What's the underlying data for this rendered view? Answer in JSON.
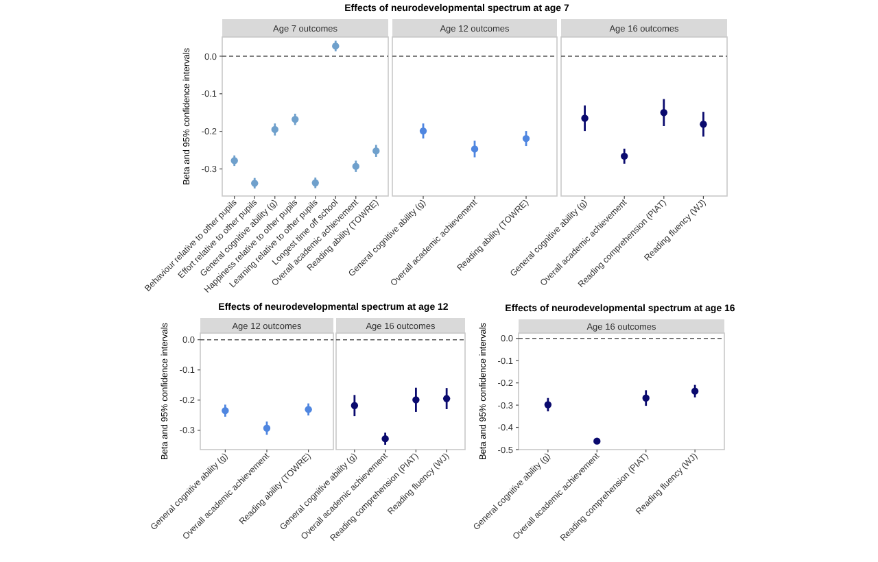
{
  "chart_data": [
    {
      "type": "scatter",
      "title": "Effects of neurodevelopmental spectrum at age 7",
      "subtitle": "Age 7 outcomes",
      "ylabel": "Beta and 95% confidence intervals",
      "categories": [
        "Behaviour relative to other pupils",
        "Effort relative to other pupils",
        "General cognitive ability (g)",
        "Happiness relative to other pupils",
        "Learning relative to other pupils",
        "Longest time off school",
        "Overall academic achievement",
        "Reading ability (TOWRE)"
      ],
      "values": [
        -0.278,
        -0.338,
        -0.195,
        -0.168,
        -0.337,
        0.027,
        -0.293,
        -0.252
      ],
      "errors": [
        0.014,
        0.014,
        0.016,
        0.015,
        0.014,
        0.014,
        0.015,
        0.016
      ],
      "color": "#6fa0cc",
      "marker": "circle",
      "ylim": [
        -0.372,
        0.051
      ],
      "yticks": [
        {
          "value": 0,
          "label": "0.0"
        },
        {
          "value": -0.1,
          "label": "-0.1"
        },
        {
          "value": -0.2,
          "label": "-0.2"
        },
        {
          "value": -0.3,
          "label": "-0.3"
        }
      ],
      "ref_lines": [
        {
          "axis": "y",
          "value": 0,
          "line_style": "dashed"
        }
      ],
      "grid": false
    },
    {
      "type": "scatter",
      "subtitle": "Age 12 outcomes",
      "categories": [
        "General cognitive ability (g)",
        "Overall academic achievement",
        "Reading ability (TOWRE)"
      ],
      "values": [
        -0.199,
        -0.247,
        -0.219
      ],
      "errors": [
        0.02,
        0.022,
        0.02
      ],
      "color": "#4f86e0",
      "marker": "circle",
      "ylim": [
        -0.372,
        0.051
      ],
      "tick_labels": "x",
      "ref_lines": [
        {
          "axis": "y",
          "value": 0,
          "line_style": "dashed"
        }
      ],
      "grid": false
    },
    {
      "type": "scatter",
      "subtitle": "Age 16 outcomes",
      "categories": [
        "General cognitive ability (g)",
        "Overall academic achievement",
        "Reading comprehension (PIAT)",
        "Reading fluency (WJ)"
      ],
      "values": [
        -0.165,
        -0.266,
        -0.15,
        -0.181
      ],
      "errors": [
        0.034,
        0.02,
        0.036,
        0.033
      ],
      "color": "#0a0a6e",
      "marker": "circle",
      "ylim": [
        -0.372,
        0.051
      ],
      "tick_labels": "x",
      "ref_lines": [
        {
          "axis": "y",
          "value": 0,
          "line_style": "dashed"
        }
      ],
      "grid": false
    },
    {
      "type": "scatter",
      "title": "Effects of neurodevelopmental spectrum at age 12",
      "subtitle": "Age 12 outcomes",
      "ylabel": "Beta and 95% confidence intervals",
      "categories": [
        "General cognitive ability (g)",
        "Overall academic achievement",
        "Reading ability (TOWRE)"
      ],
      "values": [
        -0.235,
        -0.293,
        -0.231
      ],
      "errors": [
        0.02,
        0.022,
        0.02
      ],
      "color": "#4f86e0",
      "marker": "circle",
      "ylim": [
        -0.364,
        0.022
      ],
      "yticks": [
        {
          "value": 0,
          "label": "0.0"
        },
        {
          "value": -0.1,
          "label": "-0.1"
        },
        {
          "value": -0.2,
          "label": "-0.2"
        },
        {
          "value": -0.3,
          "label": "-0.3"
        }
      ],
      "ref_lines": [
        {
          "axis": "y",
          "value": 0,
          "line_style": "dashed"
        }
      ],
      "grid": false
    },
    {
      "type": "scatter",
      "subtitle": "Age 16 outcomes",
      "categories": [
        "General cognitive ability (g)",
        "Overall academic achievement",
        "Reading comprehension (PIAT)",
        "Reading fluency (WJ)"
      ],
      "values": [
        -0.218,
        -0.328,
        -0.199,
        -0.195
      ],
      "errors": [
        0.035,
        0.02,
        0.04,
        0.035
      ],
      "color": "#0a0a6e",
      "marker": "circle",
      "ylim": [
        -0.364,
        0.022
      ],
      "tick_labels": "x",
      "ref_lines": [
        {
          "axis": "y",
          "value": 0,
          "line_style": "dashed"
        }
      ],
      "grid": false
    },
    {
      "type": "scatter",
      "title": "Effects of neurodevelopmental spectrum at age 16",
      "subtitle": "Age 16 outcomes",
      "ylabel": "Beta and 95% confidence intervals",
      "categories": [
        "General cognitive ability (g)",
        "Overall academic achievement",
        "Reading comprehension (PIAT)",
        "Reading fluency (WJ)"
      ],
      "values": [
        -0.298,
        -0.462,
        -0.268,
        -0.237
      ],
      "errors": [
        0.03,
        0.01,
        0.035,
        0.028
      ],
      "color": "#0a0a6e",
      "marker": "circle",
      "ylim": [
        -0.5,
        0.024
      ],
      "yticks": [
        {
          "value": 0,
          "label": "0.0"
        },
        {
          "value": -0.1,
          "label": "-0.1"
        },
        {
          "value": -0.2,
          "label": "-0.2"
        },
        {
          "value": -0.3,
          "label": "-0.3"
        },
        {
          "value": -0.4,
          "label": "-0.4"
        },
        {
          "value": -0.5,
          "label": "-0.5"
        }
      ],
      "ref_lines": [
        {
          "axis": "y",
          "value": 0,
          "line_style": "dashed"
        }
      ],
      "grid": false
    }
  ]
}
